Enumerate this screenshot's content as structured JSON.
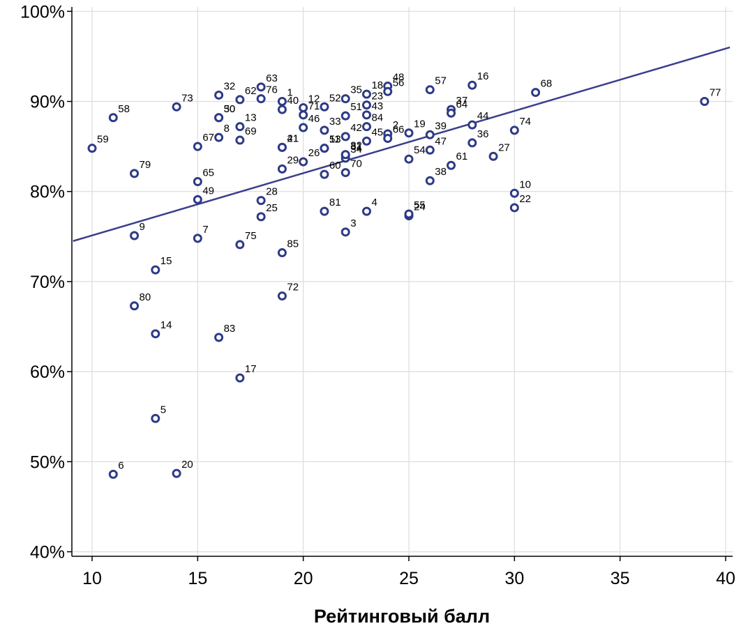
{
  "chart_data": {
    "type": "scatter",
    "title": "",
    "xlabel": "Рейтинговый балл",
    "ylabel": "",
    "xlim": [
      9.1,
      40.2
    ],
    "ylim": [
      39.6,
      101.0
    ],
    "x_ticks": [
      10,
      15,
      20,
      25,
      30,
      35,
      40
    ],
    "y_ticks": [
      40,
      50,
      60,
      70,
      80,
      90,
      100
    ],
    "y_tick_labels": [
      "40%",
      "50%",
      "60%",
      "70%",
      "80%",
      "90%",
      "100%"
    ],
    "grid": true,
    "colors": {
      "point": "#2e3a87",
      "line": "#3a3f8c",
      "grid": "#dcdcdc",
      "axis": "#000000"
    },
    "fit_line": {
      "x": [
        9.1,
        40.2
      ],
      "y": [
        74.5,
        96.0
      ]
    },
    "points": [
      {
        "label": "1",
        "x": 19,
        "y": 90.0
      },
      {
        "label": "2",
        "x": 24,
        "y": 86.4
      },
      {
        "label": "3",
        "x": 22,
        "y": 75.5
      },
      {
        "label": "4",
        "x": 23,
        "y": 77.8
      },
      {
        "label": "5",
        "x": 13,
        "y": 54.8
      },
      {
        "label": "6",
        "x": 11,
        "y": 48.6
      },
      {
        "label": "7",
        "x": 15,
        "y": 74.8
      },
      {
        "label": "8",
        "x": 16,
        "y": 86.0
      },
      {
        "label": "9",
        "x": 12,
        "y": 75.1
      },
      {
        "label": "10",
        "x": 30,
        "y": 79.8
      },
      {
        "label": "11",
        "x": 21,
        "y": 84.8
      },
      {
        "label": "12",
        "x": 20,
        "y": 89.3
      },
      {
        "label": "13",
        "x": 17,
        "y": 87.2
      },
      {
        "label": "14",
        "x": 13,
        "y": 64.2
      },
      {
        "label": "15",
        "x": 13,
        "y": 71.3
      },
      {
        "label": "16",
        "x": 28,
        "y": 91.8
      },
      {
        "label": "17",
        "x": 17,
        "y": 59.3
      },
      {
        "label": "18",
        "x": 23,
        "y": 90.8
      },
      {
        "label": "19",
        "x": 25,
        "y": 86.5
      },
      {
        "label": "20",
        "x": 14,
        "y": 48.7
      },
      {
        "label": "21",
        "x": 19,
        "y": 84.9
      },
      {
        "label": "22",
        "x": 30,
        "y": 78.2
      },
      {
        "label": "23",
        "x": 23,
        "y": 89.6
      },
      {
        "label": "24",
        "x": 25,
        "y": 77.3
      },
      {
        "label": "25",
        "x": 18,
        "y": 77.2
      },
      {
        "label": "26",
        "x": 20,
        "y": 83.3
      },
      {
        "label": "27",
        "x": 29,
        "y": 83.9
      },
      {
        "label": "28",
        "x": 18,
        "y": 79.0
      },
      {
        "label": "29",
        "x": 19,
        "y": 82.5
      },
      {
        "label": "30",
        "x": 16,
        "y": 88.2
      },
      {
        "label": "31",
        "x": 22,
        "y": 84.0
      },
      {
        "label": "32",
        "x": 16,
        "y": 90.7
      },
      {
        "label": "33",
        "x": 21,
        "y": 86.8
      },
      {
        "label": "34",
        "x": 22,
        "y": 83.7
      },
      {
        "label": "35",
        "x": 22,
        "y": 90.3
      },
      {
        "label": "36",
        "x": 28,
        "y": 85.4
      },
      {
        "label": "37",
        "x": 27,
        "y": 89.1
      },
      {
        "label": "38",
        "x": 26,
        "y": 81.2
      },
      {
        "label": "39",
        "x": 26,
        "y": 86.3
      },
      {
        "label": "40",
        "x": 19,
        "y": 89.1
      },
      {
        "label": "41",
        "x": 19,
        "y": 84.9
      },
      {
        "label": "42",
        "x": 22,
        "y": 86.1
      },
      {
        "label": "43",
        "x": 23,
        "y": 88.5
      },
      {
        "label": "44",
        "x": 28,
        "y": 87.4
      },
      {
        "label": "45",
        "x": 23,
        "y": 85.6
      },
      {
        "label": "46",
        "x": 20,
        "y": 87.1
      },
      {
        "label": "47",
        "x": 26,
        "y": 84.6
      },
      {
        "label": "48",
        "x": 24,
        "y": 91.7
      },
      {
        "label": "49",
        "x": 15,
        "y": 79.1
      },
      {
        "label": "50",
        "x": 16,
        "y": 88.2
      },
      {
        "label": "51",
        "x": 22,
        "y": 88.4
      },
      {
        "label": "52",
        "x": 21,
        "y": 89.4
      },
      {
        "label": "53",
        "x": 21,
        "y": 84.8
      },
      {
        "label": "54",
        "x": 25,
        "y": 83.6
      },
      {
        "label": "55",
        "x": 25,
        "y": 77.5
      },
      {
        "label": "56",
        "x": 24,
        "y": 91.1
      },
      {
        "label": "57",
        "x": 26,
        "y": 91.3
      },
      {
        "label": "58",
        "x": 11,
        "y": 88.2
      },
      {
        "label": "59",
        "x": 10,
        "y": 84.8
      },
      {
        "label": "60",
        "x": 21,
        "y": 81.9
      },
      {
        "label": "61",
        "x": 27,
        "y": 82.9
      },
      {
        "label": "62",
        "x": 17,
        "y": 90.2
      },
      {
        "label": "63",
        "x": 18,
        "y": 91.6
      },
      {
        "label": "64",
        "x": 27,
        "y": 88.7
      },
      {
        "label": "65",
        "x": 15,
        "y": 81.1
      },
      {
        "label": "66",
        "x": 24,
        "y": 85.9
      },
      {
        "label": "67",
        "x": 15,
        "y": 85.0
      },
      {
        "label": "68",
        "x": 31,
        "y": 91.0
      },
      {
        "label": "69",
        "x": 17,
        "y": 85.7
      },
      {
        "label": "70",
        "x": 22,
        "y": 82.1
      },
      {
        "label": "71",
        "x": 20,
        "y": 88.5
      },
      {
        "label": "72",
        "x": 19,
        "y": 68.4
      },
      {
        "label": "73",
        "x": 14,
        "y": 89.4
      },
      {
        "label": "74",
        "x": 30,
        "y": 86.8
      },
      {
        "label": "75",
        "x": 17,
        "y": 74.1
      },
      {
        "label": "76",
        "x": 18,
        "y": 90.3
      },
      {
        "label": "77",
        "x": 39,
        "y": 90.0
      },
      {
        "label": "79",
        "x": 12,
        "y": 82.0
      },
      {
        "label": "80",
        "x": 12,
        "y": 67.3
      },
      {
        "label": "81",
        "x": 21,
        "y": 77.8
      },
      {
        "label": "82",
        "x": 22,
        "y": 84.1
      },
      {
        "label": "83",
        "x": 16,
        "y": 63.8
      },
      {
        "label": "84",
        "x": 23,
        "y": 87.2
      },
      {
        "label": "85",
        "x": 19,
        "y": 73.2
      }
    ]
  }
}
